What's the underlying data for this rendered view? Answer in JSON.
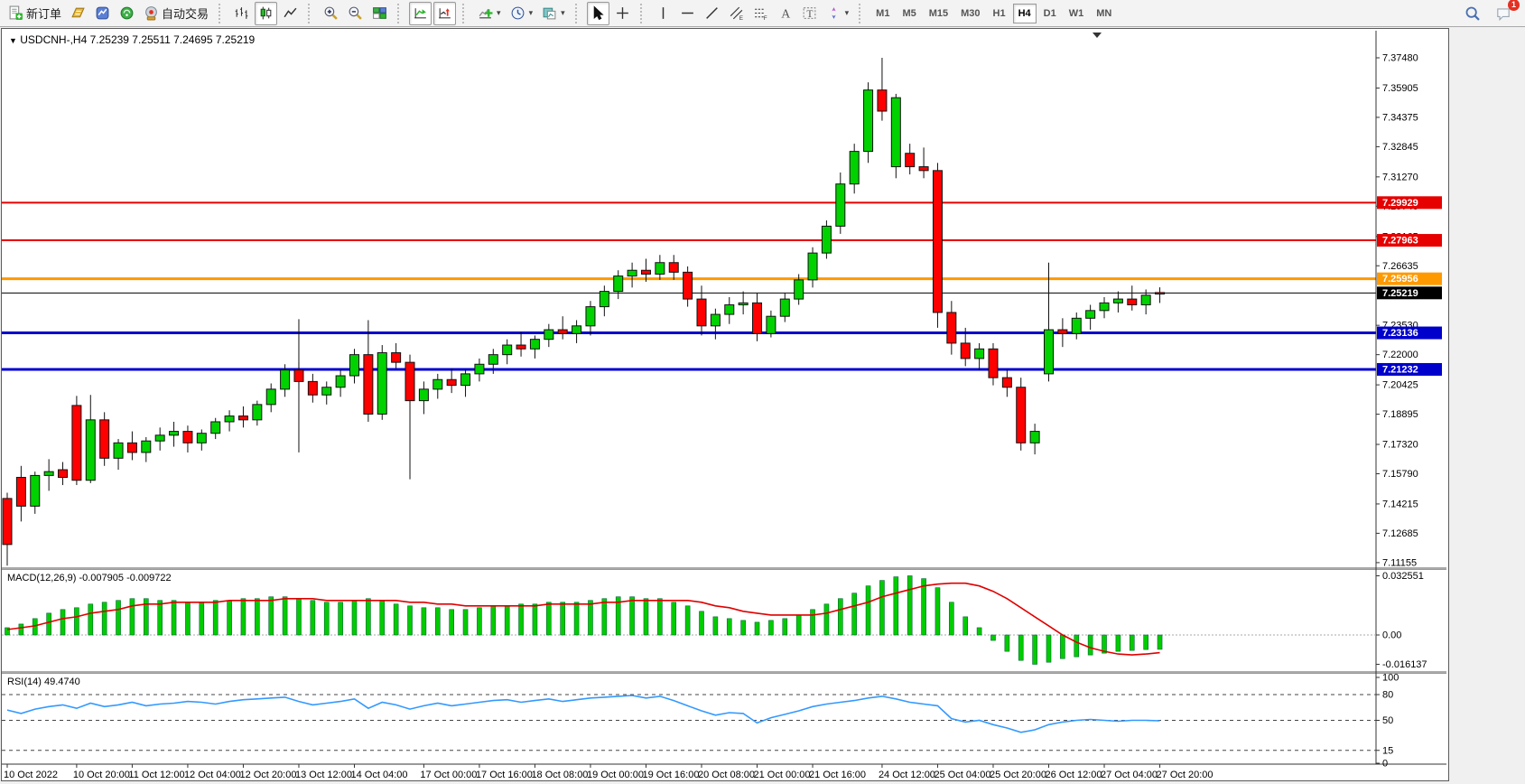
{
  "toolbar": {
    "buttons": [
      {
        "name": "new-order-button",
        "icon": "neworder",
        "label": "新订单"
      },
      {
        "name": "profiles-button",
        "icon": "profiles"
      },
      {
        "name": "market-watch-button",
        "icon": "market"
      },
      {
        "name": "signals-button",
        "icon": "signals"
      },
      {
        "name": "auto-trading-button",
        "icon": "robot",
        "label": "自动交易"
      },
      {
        "sep": true
      },
      {
        "name": "bar-chart-button",
        "icon": "bars"
      },
      {
        "name": "candlestick-chart-button",
        "icon": "candles",
        "active": true
      },
      {
        "name": "line-chart-button",
        "icon": "linechart"
      },
      {
        "sep": true
      },
      {
        "name": "zoom-in-button",
        "icon": "zoomin"
      },
      {
        "name": "zoom-out-button",
        "icon": "zoomout"
      },
      {
        "name": "tile-windows-button",
        "icon": "tiles"
      },
      {
        "sep": true
      },
      {
        "name": "auto-scroll-button",
        "icon": "autoscroll",
        "active": true
      },
      {
        "name": "chart-shift-button",
        "icon": "shift",
        "active": true
      },
      {
        "sep": true
      },
      {
        "name": "indicators-button",
        "icon": "indicators",
        "caret": true
      },
      {
        "name": "periods-button",
        "icon": "clock",
        "caret": true
      },
      {
        "name": "templates-button",
        "icon": "template",
        "caret": true
      },
      {
        "sep": true
      },
      {
        "name": "cursor-button",
        "icon": "cursor",
        "active": true
      },
      {
        "name": "crosshair-button",
        "icon": "crosshair"
      },
      {
        "sep": true
      },
      {
        "name": "vertical-line-button",
        "icon": "vline"
      },
      {
        "name": "horizontal-line-button",
        "icon": "hline"
      },
      {
        "name": "trendline-button",
        "icon": "trendline"
      },
      {
        "name": "equidistant-channel-button",
        "icon": "channel"
      },
      {
        "name": "fibonacci-button",
        "icon": "fibo"
      },
      {
        "name": "text-button",
        "icon": "textA"
      },
      {
        "name": "text-label-button",
        "icon": "textT"
      },
      {
        "name": "arrows-button",
        "icon": "arrows",
        "caret": true
      },
      {
        "sep": true
      }
    ],
    "timeframes": [
      "M1",
      "M5",
      "M15",
      "M30",
      "H1",
      "H4",
      "D1",
      "W1",
      "MN"
    ],
    "active_timeframe": "H4",
    "notification_count": "1"
  },
  "chart": {
    "title": "USDCNH-,H4",
    "ohlc_text": "7.25239 7.25511 7.24695 7.25219",
    "macd_label": "MACD(12,26,9) -0.007905 -0.009722",
    "rsi_label": "RSI(14) 49.4740",
    "colors": {
      "bull": "#00d200",
      "bear": "#ff0000",
      "candle_stroke": "#222200",
      "macd_hist": "#00cc00",
      "macd_signal": "#e00000",
      "rsi_line": "#3399ff",
      "hline_red": "#e60000",
      "hline_orange": "#ff9900",
      "hline_blue": "#0000cc",
      "price_line": "#000000"
    }
  },
  "chart_data": [
    {
      "type": "candlestick",
      "title": "USDCNH-,H4",
      "symbol": "USDCNH-",
      "period": "H4",
      "ylim": [
        7.10869,
        7.38893
      ],
      "trading_days": [
        "10 Oct",
        "11 Oct",
        "12 Oct",
        "13 Oct",
        "14 Oct",
        "17 Oct",
        "18 Oct",
        "19 Oct",
        "20 Oct",
        "21 Oct",
        "24 Oct",
        "25 Oct",
        "26 Oct",
        "27 Oct"
      ],
      "sessions": [
        "00:00",
        "04:00",
        "08:00",
        "12:00",
        "16:00",
        "20:00"
      ],
      "ohlc": [
        [
          7.145,
          7.148,
          7.11,
          7.121
        ],
        [
          7.156,
          7.162,
          7.133,
          7.141
        ],
        [
          7.141,
          7.159,
          7.137,
          7.157
        ],
        [
          7.157,
          7.1655,
          7.149,
          7.159
        ],
        [
          7.16,
          7.164,
          7.152,
          7.156
        ],
        [
          7.1935,
          7.1985,
          7.152,
          7.1545
        ],
        [
          7.1545,
          7.199,
          7.153,
          7.186
        ],
        [
          7.186,
          7.19,
          7.162,
          7.166
        ],
        [
          7.166,
          7.176,
          7.16,
          7.174
        ],
        [
          7.174,
          7.18,
          7.165,
          7.169
        ],
        [
          7.169,
          7.177,
          7.164,
          7.175
        ],
        [
          7.175,
          7.182,
          7.17,
          7.178
        ],
        [
          7.178,
          7.185,
          7.172,
          7.18
        ],
        [
          7.18,
          7.183,
          7.169,
          7.174
        ],
        [
          7.174,
          7.181,
          7.17,
          7.179
        ],
        [
          7.179,
          7.187,
          7.176,
          7.185
        ],
        [
          7.185,
          7.191,
          7.18,
          7.188
        ],
        [
          7.188,
          7.193,
          7.182,
          7.186
        ],
        [
          7.186,
          7.196,
          7.183,
          7.194
        ],
        [
          7.194,
          7.205,
          7.19,
          7.202
        ],
        [
          7.202,
          7.215,
          7.198,
          7.212
        ],
        [
          7.212,
          7.216,
          7.202,
          7.206
        ],
        [
          7.206,
          7.21,
          7.195,
          7.199
        ],
        [
          7.199,
          7.206,
          7.194,
          7.203
        ],
        [
          7.203,
          7.212,
          7.198,
          7.209
        ],
        [
          7.209,
          7.223,
          7.205,
          7.22
        ],
        [
          7.22,
          7.238,
          7.185,
          7.189
        ],
        [
          7.189,
          7.225,
          7.186,
          7.221
        ],
        [
          7.221,
          7.226,
          7.213,
          7.216
        ],
        [
          7.216,
          7.22,
          7.155,
          7.196
        ],
        [
          7.196,
          7.206,
          7.189,
          7.202
        ],
        [
          7.202,
          7.21,
          7.197,
          7.207
        ],
        [
          7.207,
          7.213,
          7.2,
          7.204
        ],
        [
          7.204,
          7.212,
          7.198,
          7.21
        ],
        [
          7.21,
          7.218,
          7.206,
          7.215
        ],
        [
          7.215,
          7.223,
          7.21,
          7.22
        ],
        [
          7.22,
          7.228,
          7.215,
          7.225
        ],
        [
          7.225,
          7.232,
          7.219,
          7.223
        ],
        [
          7.223,
          7.23,
          7.218,
          7.228
        ],
        [
          7.228,
          7.236,
          7.224,
          7.233
        ],
        [
          7.233,
          7.24,
          7.228,
          7.231
        ],
        [
          7.231,
          7.238,
          7.226,
          7.235
        ],
        [
          7.235,
          7.248,
          7.23,
          7.245
        ],
        [
          7.245,
          7.256,
          7.24,
          7.253
        ],
        [
          7.253,
          7.264,
          7.249,
          7.261
        ],
        [
          7.261,
          7.268,
          7.255,
          7.264
        ],
        [
          7.264,
          7.27,
          7.258,
          7.262
        ],
        [
          7.262,
          7.272,
          7.259,
          7.268
        ],
        [
          7.268,
          7.272,
          7.259,
          7.263
        ],
        [
          7.263,
          7.266,
          7.245,
          7.249
        ],
        [
          7.249,
          7.256,
          7.23,
          7.235
        ],
        [
          7.235,
          7.244,
          7.228,
          7.241
        ],
        [
          7.241,
          7.25,
          7.236,
          7.246
        ],
        [
          7.246,
          7.253,
          7.241,
          7.247
        ],
        [
          7.247,
          7.252,
          7.227,
          7.231
        ],
        [
          7.231,
          7.243,
          7.229,
          7.24
        ],
        [
          7.24,
          7.252,
          7.237,
          7.249
        ],
        [
          7.249,
          7.262,
          7.246,
          7.259
        ],
        [
          7.259,
          7.276,
          7.255,
          7.273
        ],
        [
          7.273,
          7.29,
          7.27,
          7.287
        ],
        [
          7.287,
          7.315,
          7.283,
          7.309
        ],
        [
          7.309,
          7.33,
          7.304,
          7.326
        ],
        [
          7.326,
          7.362,
          7.32,
          7.358
        ],
        [
          7.358,
          7.3748,
          7.342,
          7.347
        ],
        [
          7.318,
          7.356,
          7.312,
          7.354
        ],
        [
          7.325,
          7.33,
          7.314,
          7.318
        ],
        [
          7.318,
          7.328,
          7.312,
          7.316
        ],
        [
          7.316,
          7.32,
          7.234,
          7.242
        ],
        [
          7.242,
          7.248,
          7.22,
          7.226
        ],
        [
          7.226,
          7.234,
          7.214,
          7.218
        ],
        [
          7.218,
          7.226,
          7.212,
          7.223
        ],
        [
          7.223,
          7.226,
          7.204,
          7.208
        ],
        [
          7.208,
          7.212,
          7.198,
          7.203
        ],
        [
          7.203,
          7.208,
          7.17,
          7.174
        ],
        [
          7.174,
          7.184,
          7.168,
          7.18
        ],
        [
          7.21,
          7.268,
          7.206,
          7.233
        ],
        [
          7.233,
          7.239,
          7.224,
          7.231
        ],
        [
          7.231,
          7.242,
          7.228,
          7.239
        ],
        [
          7.239,
          7.246,
          7.233,
          7.243
        ],
        [
          7.243,
          7.25,
          7.239,
          7.247
        ],
        [
          7.247,
          7.253,
          7.242,
          7.249
        ],
        [
          7.249,
          7.256,
          7.243,
          7.246
        ],
        [
          7.246,
          7.254,
          7.241,
          7.251
        ],
        [
          7.25239,
          7.25511,
          7.24695,
          7.25219
        ]
      ],
      "price_ticks": [
        7.3748,
        7.35905,
        7.34375,
        7.32845,
        7.3127,
        7.2974,
        7.28165,
        7.26635,
        7.2353,
        7.22,
        7.20425,
        7.18895,
        7.1732,
        7.1579,
        7.14215,
        7.12685,
        7.11155
      ],
      "badges": [
        {
          "value": 7.29929,
          "label": "7.29929",
          "color": "#e60000",
          "line_width": 2
        },
        {
          "value": 7.27963,
          "label": "7.27963",
          "color": "#e60000",
          "line_width": 2
        },
        {
          "value": 7.25956,
          "label": "7.25956",
          "color": "#ff9900",
          "line_width": 3
        },
        {
          "value": 7.25219,
          "label": "7.25219",
          "color": "#000000",
          "line_width": 1
        },
        {
          "value": 7.23136,
          "label": "7.23136",
          "color": "#0000cc",
          "line_width": 3
        },
        {
          "value": 7.21232,
          "label": "7.21232",
          "color": "#0000cc",
          "line_width": 3
        }
      ],
      "vline_annotation": {
        "bar": 21,
        "price_top": 7.2385,
        "price_bottom": 7.169
      },
      "time_ticks": [
        {
          "bar": 0,
          "label": "10 Oct 2022"
        },
        {
          "bar": 5,
          "label": "10 Oct 20:00"
        },
        {
          "bar": 9,
          "label": "11 Oct 12:00"
        },
        {
          "bar": 13,
          "label": "12 Oct 04:00"
        },
        {
          "bar": 17,
          "label": "12 Oct 20:00"
        },
        {
          "bar": 21,
          "label": "13 Oct 12:00"
        },
        {
          "bar": 25,
          "label": "14 Oct 04:00"
        },
        {
          "bar": 30,
          "label": "17 Oct 00:00"
        },
        {
          "bar": 34,
          "label": "17 Oct 16:00"
        },
        {
          "bar": 38,
          "label": "18 Oct 08:00"
        },
        {
          "bar": 42,
          "label": "19 Oct 00:00"
        },
        {
          "bar": 46,
          "label": "19 Oct 16:00"
        },
        {
          "bar": 50,
          "label": "20 Oct 08:00"
        },
        {
          "bar": 54,
          "label": "21 Oct 00:00"
        },
        {
          "bar": 58,
          "label": "21 Oct 16:00"
        },
        {
          "bar": 63,
          "label": "24 Oct 12:00"
        },
        {
          "bar": 67,
          "label": "25 Oct 04:00"
        },
        {
          "bar": 71,
          "label": "25 Oct 20:00"
        },
        {
          "bar": 75,
          "label": "26 Oct 12:00"
        },
        {
          "bar": 79,
          "label": "27 Oct 04:00"
        },
        {
          "bar": 83,
          "label": "27 Oct 20:00"
        }
      ]
    },
    {
      "type": "bar",
      "name": "MACD(12,26,9)",
      "last_values": "-0.007905 -0.009722",
      "ylim": [
        -0.0199,
        0.0358
      ],
      "yticks": [
        {
          "v": 0.032551,
          "l": "0.032551"
        },
        {
          "v": 0,
          "l": "0.00"
        },
        {
          "v": -0.016137,
          "l": "-0.016137"
        }
      ],
      "histogram": [
        0.004,
        0.006,
        0.009,
        0.012,
        0.014,
        0.015,
        0.017,
        0.018,
        0.019,
        0.02,
        0.02,
        0.019,
        0.019,
        0.018,
        0.018,
        0.019,
        0.019,
        0.02,
        0.02,
        0.021,
        0.021,
        0.02,
        0.019,
        0.018,
        0.018,
        0.019,
        0.02,
        0.019,
        0.017,
        0.016,
        0.015,
        0.015,
        0.014,
        0.014,
        0.015,
        0.016,
        0.016,
        0.017,
        0.017,
        0.018,
        0.018,
        0.018,
        0.019,
        0.02,
        0.021,
        0.021,
        0.02,
        0.02,
        0.018,
        0.016,
        0.013,
        0.01,
        0.009,
        0.008,
        0.007,
        0.008,
        0.009,
        0.011,
        0.014,
        0.017,
        0.02,
        0.023,
        0.027,
        0.03,
        0.032,
        0.032551,
        0.031,
        0.026,
        0.018,
        0.01,
        0.004,
        -0.003,
        -0.009,
        -0.014,
        -0.016137,
        -0.015,
        -0.013,
        -0.012,
        -0.011,
        -0.01,
        -0.009,
        -0.0085,
        -0.008,
        -0.007905
      ],
      "signal": [
        0.003,
        0.004,
        0.005,
        0.007,
        0.009,
        0.01,
        0.012,
        0.013,
        0.014,
        0.016,
        0.017,
        0.017,
        0.018,
        0.018,
        0.018,
        0.018,
        0.019,
        0.019,
        0.019,
        0.019,
        0.02,
        0.02,
        0.02,
        0.019,
        0.019,
        0.019,
        0.019,
        0.019,
        0.019,
        0.018,
        0.018,
        0.017,
        0.017,
        0.016,
        0.016,
        0.016,
        0.016,
        0.016,
        0.016,
        0.017,
        0.017,
        0.017,
        0.017,
        0.018,
        0.018,
        0.019,
        0.019,
        0.019,
        0.019,
        0.019,
        0.018,
        0.016,
        0.015,
        0.013,
        0.012,
        0.011,
        0.011,
        0.011,
        0.011,
        0.012,
        0.014,
        0.016,
        0.018,
        0.021,
        0.023,
        0.025,
        0.027,
        0.028,
        0.0285,
        0.0285,
        0.027,
        0.024,
        0.02,
        0.015,
        0.01,
        0.005,
        0.0,
        -0.004,
        -0.007,
        -0.009,
        -0.0105,
        -0.011,
        -0.0105,
        -0.009722
      ]
    },
    {
      "type": "line",
      "name": "RSI(14)",
      "last_value": 49.474,
      "ylim": [
        0,
        100
      ],
      "yticks": [
        {
          "v": 100,
          "l": "100",
          "dash": false
        },
        {
          "v": 80,
          "l": "80",
          "dash": true
        },
        {
          "v": 50,
          "l": "50",
          "dash": true
        },
        {
          "v": 15,
          "l": "15",
          "dash": true
        },
        {
          "v": 0,
          "l": "0",
          "dash": false
        }
      ],
      "values": [
        62,
        58,
        63,
        66,
        68,
        64,
        70,
        66,
        68,
        71,
        67,
        69,
        70,
        72,
        71,
        69,
        72,
        74,
        75,
        76,
        77,
        72,
        68,
        70,
        72,
        75,
        64,
        71,
        68,
        63,
        67,
        70,
        67,
        69,
        71,
        73,
        74,
        71,
        73,
        75,
        72,
        74,
        76,
        77,
        78,
        79,
        76,
        78,
        73,
        67,
        61,
        56,
        59,
        58,
        47,
        53,
        57,
        61,
        66,
        69,
        71,
        73,
        76,
        78,
        75,
        71,
        69,
        67,
        52,
        48,
        50,
        45,
        41,
        36,
        39,
        45,
        48,
        50,
        51,
        50,
        49,
        50,
        50,
        49.474
      ]
    }
  ]
}
